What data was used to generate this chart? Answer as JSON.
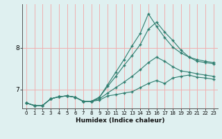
{
  "xlabel": "Humidex (Indice chaleur)",
  "xlim": [
    -0.5,
    23.5
  ],
  "ylim": [
    6.55,
    9.05
  ],
  "yticks": [
    7,
    8
  ],
  "xticks": [
    0,
    1,
    2,
    3,
    4,
    5,
    6,
    7,
    8,
    9,
    10,
    11,
    12,
    13,
    14,
    15,
    16,
    17,
    18,
    19,
    20,
    21,
    22,
    23
  ],
  "bg_color": "#dff0f0",
  "grid_color": "#f0b0b0",
  "line_color": "#2e7d6e",
  "lines": [
    {
      "x": [
        0,
        1,
        2,
        3,
        4,
        5,
        6,
        7,
        8,
        9,
        10,
        11,
        12,
        13,
        14,
        15,
        16,
        17,
        18,
        19,
        20,
        21,
        22,
        23
      ],
      "y": [
        6.68,
        6.62,
        6.62,
        6.78,
        6.83,
        6.85,
        6.82,
        6.72,
        6.72,
        6.75,
        6.85,
        6.88,
        6.92,
        6.95,
        7.05,
        7.15,
        7.22,
        7.15,
        7.28,
        7.32,
        7.35,
        7.3,
        7.28,
        7.25
      ]
    },
    {
      "x": [
        0,
        1,
        2,
        3,
        4,
        5,
        6,
        7,
        8,
        9,
        10,
        11,
        12,
        13,
        14,
        15,
        16,
        17,
        18,
        19,
        20,
        21,
        22,
        23
      ],
      "y": [
        6.68,
        6.62,
        6.62,
        6.78,
        6.83,
        6.85,
        6.82,
        6.72,
        6.72,
        6.78,
        6.92,
        7.05,
        7.18,
        7.32,
        7.48,
        7.65,
        7.78,
        7.68,
        7.55,
        7.45,
        7.42,
        7.38,
        7.35,
        7.32
      ]
    },
    {
      "x": [
        0,
        1,
        2,
        3,
        4,
        5,
        6,
        7,
        8,
        9,
        10,
        11,
        12,
        13,
        14,
        15,
        16,
        17,
        18,
        19,
        20,
        21,
        22,
        23
      ],
      "y": [
        6.68,
        6.62,
        6.62,
        6.78,
        6.83,
        6.85,
        6.82,
        6.72,
        6.72,
        6.82,
        7.08,
        7.32,
        7.58,
        7.82,
        8.08,
        8.45,
        8.62,
        8.38,
        8.18,
        7.95,
        7.78,
        7.68,
        7.65,
        7.62
      ]
    },
    {
      "x": [
        0,
        1,
        2,
        3,
        4,
        5,
        6,
        7,
        8,
        9,
        10,
        11,
        12,
        13,
        14,
        15,
        16,
        17,
        18,
        19,
        20,
        21,
        22,
        23
      ],
      "y": [
        6.68,
        6.62,
        6.62,
        6.78,
        6.83,
        6.85,
        6.82,
        6.72,
        6.72,
        6.82,
        7.12,
        7.42,
        7.72,
        8.05,
        8.35,
        8.82,
        8.52,
        8.25,
        8.02,
        7.88,
        7.78,
        7.72,
        7.68,
        7.65
      ]
    }
  ]
}
